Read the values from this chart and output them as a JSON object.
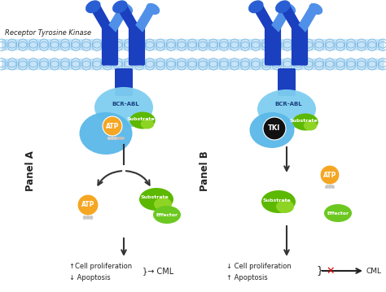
{
  "bg_color": "#ffffff",
  "title": "Receptor Tyrosine Kinase",
  "title_fontsize": 6.0,
  "panel_a_label": "Panel A",
  "panel_b_label": "Panel B",
  "panel_label_fontsize": 8.5,
  "membrane_color": "#c8e4f8",
  "membrane_border_color": "#7ab8e0",
  "receptor_dark": "#1a3fbf",
  "receptor_mid": "#2a5fd4",
  "receptor_light": "#5090e8",
  "bcr_abl_color": "#7ecef0",
  "bcr_abl_lower": "#4db8e8",
  "bcr_abl_leftblob": "#5dc8f5",
  "atp_color": "#f5a623",
  "substrate_color_dark": "#5cb800",
  "substrate_color_light": "#8ed424",
  "effector_color": "#6cc820",
  "tki_color": "#111111",
  "arrow_color": "#333333",
  "x_color": "#dd0000",
  "panel_a_text1": "↑Cell proliferation",
  "panel_a_text2": "↓ Apoptosis",
  "panel_b_text1": "↓ Cell proliferation",
  "panel_b_text2": "↑ Apoptosis",
  "bcr_abl_text": "BCR-ABL",
  "atp_text": "ATP",
  "substrate_text": "Substrate",
  "effector_text": "Effector",
  "tki_text": "TKI"
}
